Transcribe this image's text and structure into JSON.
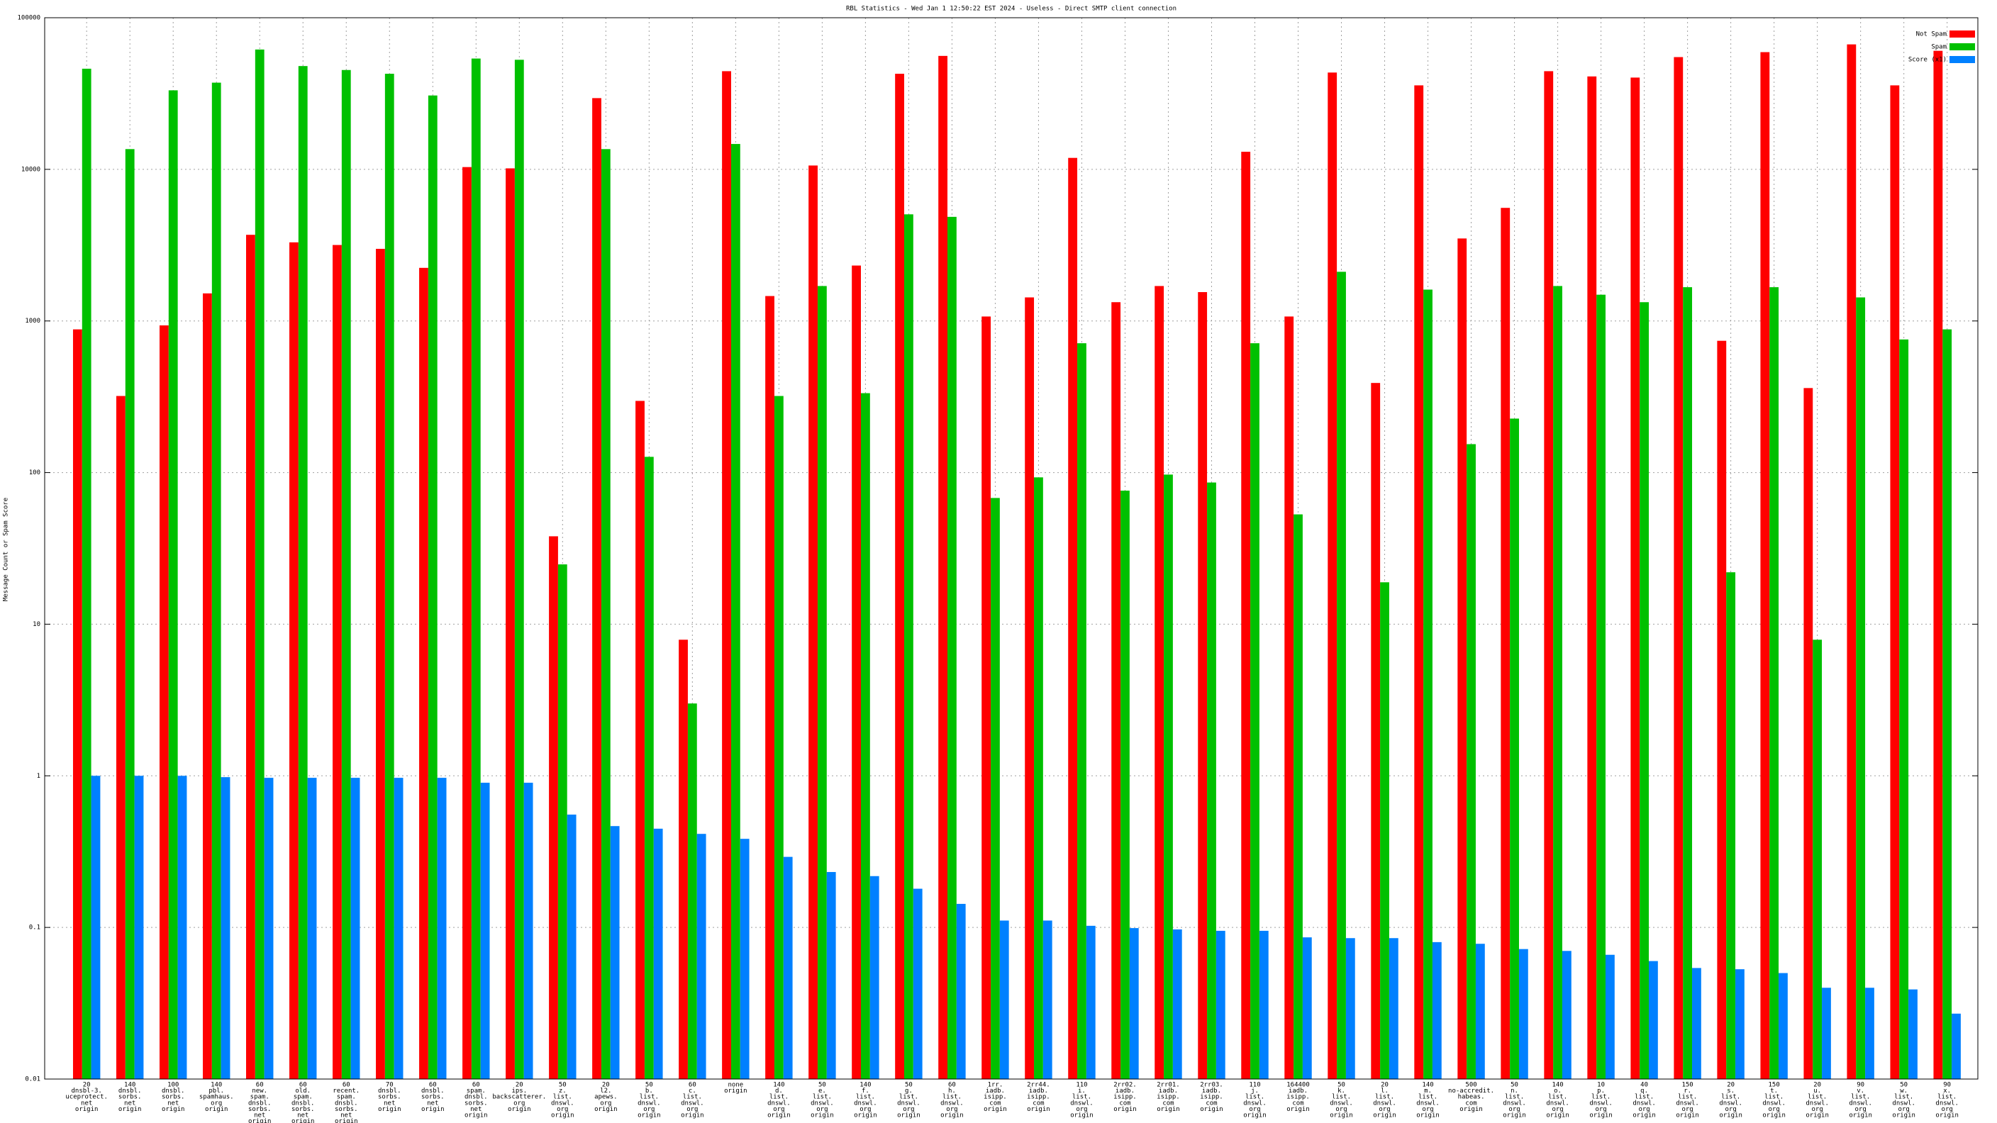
{
  "chart_data": {
    "type": "bar",
    "title": "RBL Statistics - Wed Jan  1 12:50:22 EST 2024 - Useless - Direct SMTP client connection",
    "y_label": "Message Count or Spam Score",
    "log_scale": true,
    "grid": true,
    "legend": "top-right",
    "ylim": [
      0.01,
      100000
    ],
    "yticks": [
      0.01,
      0.1,
      1,
      10,
      100,
      1000,
      10000,
      100000
    ],
    "categories": [
      [
        "20",
        "dnsbl-3.",
        "uceprotect.",
        "net",
        "origin"
      ],
      [
        "140",
        "dnsbl.",
        "sorbs.",
        "net",
        "origin"
      ],
      [
        "100",
        "dnsbl.",
        "sorbs.",
        "net",
        "origin"
      ],
      [
        "140",
        "pbl.",
        "spamhaus.",
        "org",
        "origin"
      ],
      [
        "60",
        "new.",
        "spam.",
        "dnsbl.",
        "sorbs.",
        "net",
        "origin"
      ],
      [
        "60",
        "old.",
        "spam.",
        "dnsbl.",
        "sorbs.",
        "net",
        "origin"
      ],
      [
        "60",
        "recent.",
        "spam.",
        "dnsbl.",
        "sorbs.",
        "net",
        "origin"
      ],
      [
        "70",
        "dnsbl.",
        "sorbs.",
        "net",
        "origin"
      ],
      [
        "60",
        "dnsbl.",
        "sorbs.",
        "net",
        "origin"
      ],
      [
        "60",
        "spam.",
        "dnsbl.",
        "sorbs.",
        "net",
        "origin"
      ],
      [
        "20",
        "ips.",
        "backscatterer.",
        "org",
        "origin"
      ],
      [
        "50",
        "z.",
        "list.",
        "dnswl.",
        "org",
        "origin"
      ],
      [
        "20",
        "l2.",
        "apews.",
        "org",
        "origin"
      ],
      [
        "50",
        "b.",
        "list.",
        "dnswl.",
        "org",
        "origin"
      ],
      [
        "60",
        "c.",
        "list.",
        "dnswl.",
        "org",
        "origin"
      ],
      [
        "none",
        "origin"
      ],
      [
        "140",
        "d.",
        "list.",
        "dnswl.",
        "org",
        "origin"
      ],
      [
        "50",
        "e.",
        "list.",
        "dnswl.",
        "org",
        "origin"
      ],
      [
        "140",
        "f.",
        "list.",
        "dnswl.",
        "org",
        "origin"
      ],
      [
        "50",
        "g.",
        "list.",
        "dnswl.",
        "org",
        "origin"
      ],
      [
        "60",
        "h.",
        "list.",
        "dnswl.",
        "org",
        "origin"
      ],
      [
        "1rr.",
        "iadb.",
        "isipp.",
        "com",
        "origin"
      ],
      [
        "2rr44.",
        "iadb.",
        "isipp.",
        "com",
        "origin"
      ],
      [
        "110",
        "i.",
        "list.",
        "dnswl.",
        "org",
        "origin"
      ],
      [
        "2rr02.",
        "iadb.",
        "isipp.",
        "com",
        "origin"
      ],
      [
        "2rr01.",
        "iadb.",
        "isipp.",
        "com",
        "origin"
      ],
      [
        "2rr03.",
        "iadb.",
        "isipp.",
        "com",
        "origin"
      ],
      [
        "110",
        "j.",
        "list.",
        "dnswl.",
        "org",
        "origin"
      ],
      [
        "164400",
        "iadb.",
        "isipp.",
        "com",
        "origin"
      ],
      [
        "50",
        "k.",
        "list.",
        "dnswl.",
        "org",
        "origin"
      ],
      [
        "20",
        "l.",
        "list.",
        "dnswl.",
        "org",
        "origin"
      ],
      [
        "140",
        "m.",
        "list.",
        "dnswl.",
        "org",
        "origin"
      ],
      [
        "500",
        "no-accredit.",
        "habeas.",
        "com",
        "origin"
      ],
      [
        "50",
        "n.",
        "list.",
        "dnswl.",
        "org",
        "origin"
      ],
      [
        "140",
        "o.",
        "list.",
        "dnswl.",
        "org",
        "origin"
      ],
      [
        "10",
        "p.",
        "list.",
        "dnswl.",
        "org",
        "origin"
      ],
      [
        "40",
        "q.",
        "list.",
        "dnswl.",
        "org",
        "origin"
      ],
      [
        "150",
        "r.",
        "list.",
        "dnswl.",
        "org",
        "origin"
      ],
      [
        "20",
        "s.",
        "list.",
        "dnswl.",
        "org",
        "origin"
      ],
      [
        "150",
        "t.",
        "list.",
        "dnswl.",
        "org",
        "origin"
      ],
      [
        "20",
        "u.",
        "list.",
        "dnswl.",
        "org",
        "origin"
      ],
      [
        "90",
        "v.",
        "list.",
        "dnswl.",
        "org",
        "origin"
      ],
      [
        "50",
        "w.",
        "list.",
        "dnswl.",
        "org",
        "origin"
      ],
      [
        "90",
        "x.",
        "list.",
        "dnswl.",
        "org",
        "origin"
      ]
    ],
    "series": [
      {
        "name": "Not Spam",
        "color": "#ff0000",
        "values": [
          880,
          320,
          935,
          1520,
          3700,
          3300,
          3170,
          2990,
          2240,
          10350,
          10150,
          38,
          29500,
          297,
          7.9,
          44400,
          1460,
          10600,
          2320,
          42700,
          56000,
          1070,
          1430,
          11900,
          1330,
          1700,
          1550,
          13060,
          1070,
          43500,
          390,
          35800,
          3500,
          5570,
          44400,
          41000,
          40300,
          55000,
          740,
          59300,
          361,
          66700,
          35800,
          60500
        ]
      },
      {
        "name": "Spam",
        "color": "#00c000",
        "values": [
          46100,
          13600,
          33200,
          37300,
          61700,
          48000,
          45200,
          42700,
          30700,
          53800,
          52800,
          24.8,
          13600,
          127,
          3.0,
          14700,
          320,
          1700,
          334,
          5050,
          4860,
          68,
          93,
          713,
          76,
          97,
          86,
          713,
          53,
          2110,
          18.9,
          1610,
          154,
          227,
          1700,
          1490,
          1330,
          1670,
          22,
          1670,
          7.9,
          1430,
          755,
          880
        ]
      },
      {
        "name": "Score (x1)",
        "color": "#0080ff",
        "values": [
          1.0,
          1.0,
          1.0,
          0.98,
          0.97,
          0.97,
          0.97,
          0.97,
          0.97,
          0.9,
          0.9,
          0.555,
          0.466,
          0.448,
          0.414,
          0.384,
          0.292,
          0.232,
          0.218,
          0.18,
          0.143,
          0.111,
          0.111,
          0.1025,
          0.099,
          0.097,
          0.095,
          0.095,
          0.086,
          0.085,
          0.085,
          0.08,
          0.078,
          0.072,
          0.07,
          0.066,
          0.06,
          0.054,
          0.053,
          0.05,
          0.04,
          0.04,
          0.039,
          0.027
        ]
      }
    ]
  }
}
